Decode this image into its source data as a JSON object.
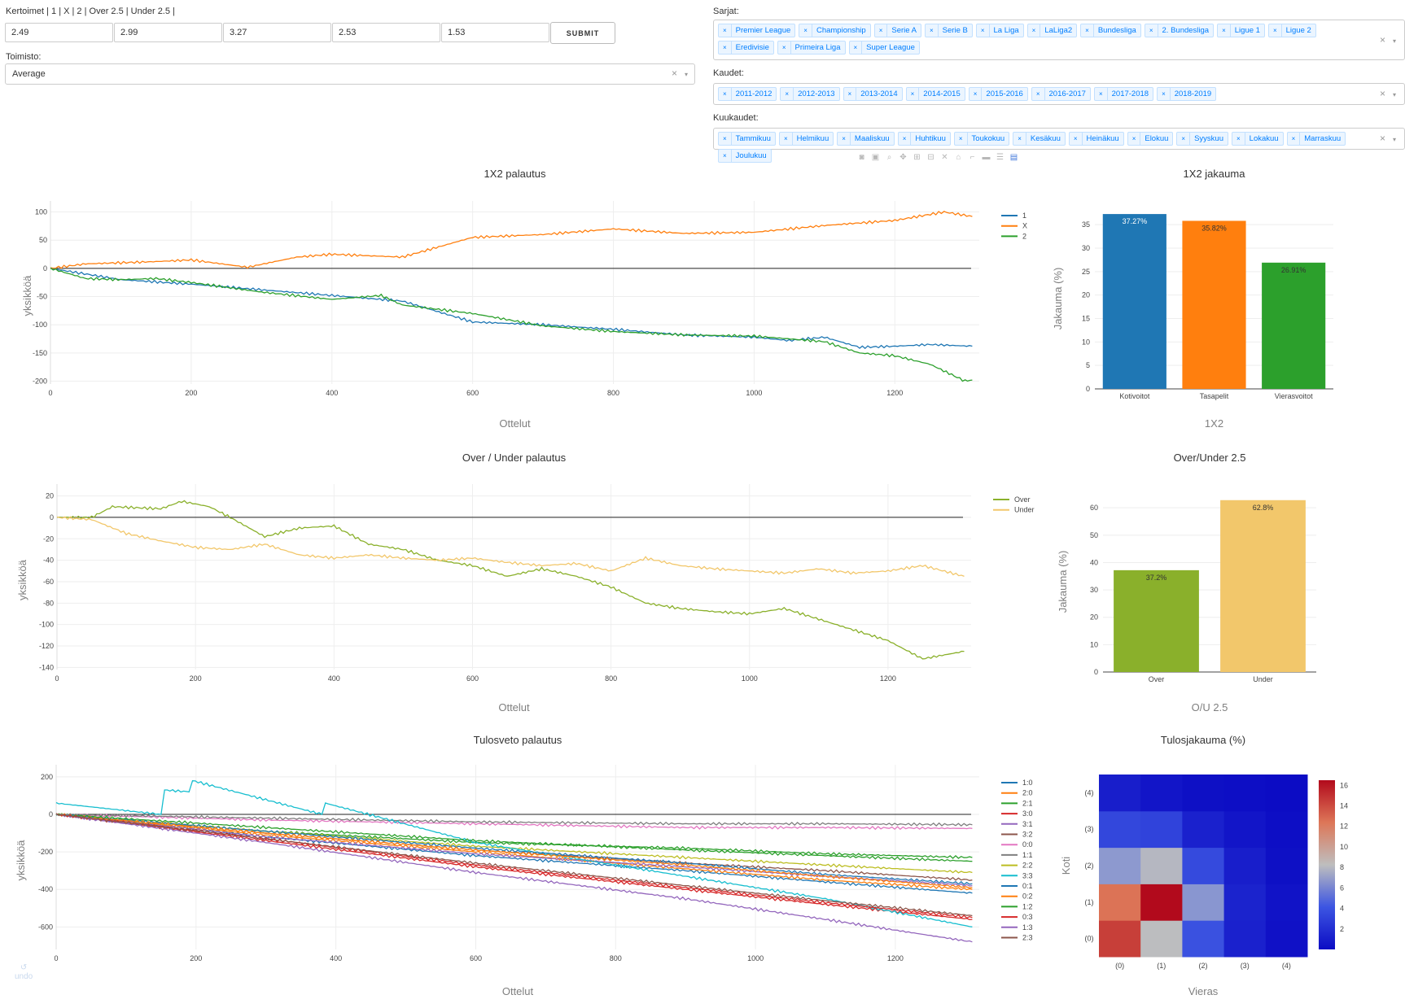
{
  "controls": {
    "odds_label": "Kertoimet | 1 | X | 2 | Over 2.5 | Under 2.5 |",
    "odds_values": [
      "2.49",
      "2.99",
      "3.27",
      "2.53",
      "1.53"
    ],
    "submit_label": "SUBMIT",
    "bookmaker_label": "Toimisto:",
    "bookmaker_value": "Average",
    "leagues_label": "Sarjat:",
    "leagues": [
      "Premier League",
      "Championship",
      "Serie A",
      "Serie B",
      "La Liga",
      "LaLiga2",
      "Bundesliga",
      "2. Bundesliga",
      "Ligue 1",
      "Ligue 2",
      "Eredivisie",
      "Primeira Liga",
      "Super League"
    ],
    "seasons_label": "Kaudet:",
    "seasons": [
      "2011-2012",
      "2012-2013",
      "2013-2014",
      "2014-2015",
      "2015-2016",
      "2016-2017",
      "2017-2018",
      "2018-2019"
    ],
    "months_label": "Kuukaudet:",
    "months": [
      "Tammikuu",
      "Helmikuu",
      "Maaliskuu",
      "Huhtikuu",
      "Toukokuu",
      "Kesäkuu",
      "Heinäkuu",
      "Elokuu",
      "Syyskuu",
      "Lokakuu",
      "Marraskuu",
      "Joulukuu"
    ],
    "clear_symbol": "×",
    "remove_symbol": "×",
    "caret_symbol": "▾"
  },
  "modebar_icons": [
    "camera-icon",
    "save-icon",
    "zoom-icon",
    "pan-icon",
    "zoom-in-icon",
    "zoom-out-icon",
    "autoscale-icon",
    "reset-axes-icon",
    "spike-lines-icon",
    "hover-closest-icon",
    "hover-compare-icon",
    "plotly-logo-icon"
  ],
  "undo_label": "undo",
  "chart_data": [
    {
      "id": "c1x2",
      "type": "line",
      "title": "1X2 palautus",
      "xlabel": "Ottelut",
      "ylabel": "yksikköä",
      "xlim": [
        0,
        1320
      ],
      "ylim": [
        -205,
        108
      ],
      "xticks": [
        0,
        200,
        400,
        600,
        800,
        1000,
        1200
      ],
      "yticks": [
        100,
        50,
        0,
        -50,
        -100,
        -150,
        -200
      ],
      "series": [
        {
          "name": "1",
          "color": "#1f77b4",
          "x": [
            0,
            100,
            200,
            300,
            400,
            500,
            600,
            700,
            800,
            900,
            1000,
            1050,
            1100,
            1150,
            1200,
            1250,
            1310
          ],
          "y": [
            0,
            -20,
            -28,
            -38,
            -48,
            -58,
            -95,
            -100,
            -108,
            -118,
            -122,
            -128,
            -122,
            -140,
            -138,
            -135,
            -138
          ]
        },
        {
          "name": "X",
          "color": "#ff7f0e",
          "x": [
            0,
            50,
            100,
            150,
            200,
            280,
            350,
            400,
            500,
            600,
            700,
            800,
            900,
            1000,
            1100,
            1200,
            1270,
            1310
          ],
          "y": [
            0,
            8,
            10,
            12,
            15,
            2,
            20,
            25,
            20,
            55,
            60,
            70,
            62,
            64,
            76,
            85,
            100,
            92
          ]
        },
        {
          "name": "2",
          "color": "#2ca02c",
          "x": [
            0,
            50,
            100,
            150,
            200,
            300,
            400,
            470,
            500,
            600,
            700,
            800,
            900,
            1000,
            1100,
            1150,
            1200,
            1250,
            1300,
            1310
          ],
          "y": [
            0,
            -18,
            -20,
            -18,
            -25,
            -42,
            -55,
            -48,
            -65,
            -80,
            -102,
            -112,
            -118,
            -120,
            -130,
            -150,
            -155,
            -170,
            -200,
            -198
          ]
        }
      ],
      "baseline": 0
    },
    {
      "id": "c1x2bar",
      "type": "bar",
      "title": "1X2 jakauma",
      "xlabel": "1X2",
      "ylabel": "Jakauma (%)",
      "ylim": [
        0,
        38.5
      ],
      "yticks": [
        0,
        5,
        10,
        15,
        20,
        25,
        30,
        35
      ],
      "categories": [
        "Kotivoitot",
        "Tasapelit",
        "Vierasvoitot"
      ],
      "values": [
        37.27,
        35.82,
        26.91
      ],
      "value_labels": [
        "37.27%",
        "35.82%",
        "26.91%"
      ],
      "colors": [
        "#1f77b4",
        "#ff7f0e",
        "#2ca02c"
      ]
    },
    {
      "id": "cou",
      "type": "line",
      "title": "Over / Under palautus",
      "xlabel": "Ottelut",
      "ylabel": "yksikköä",
      "xlim": [
        0,
        1320
      ],
      "ylim": [
        -142,
        25
      ],
      "xticks": [
        0,
        200,
        400,
        600,
        800,
        1000,
        1200
      ],
      "yticks": [
        20,
        0,
        -20,
        -40,
        -60,
        -80,
        -100,
        -120,
        -140
      ],
      "series": [
        {
          "name": "Over",
          "color": "#8ab02b",
          "x": [
            0,
            50,
            80,
            150,
            180,
            220,
            250,
            300,
            350,
            400,
            450,
            500,
            550,
            600,
            650,
            700,
            750,
            800,
            850,
            900,
            950,
            1000,
            1050,
            1100,
            1150,
            1200,
            1250,
            1310
          ],
          "y": [
            0,
            0,
            10,
            8,
            15,
            10,
            0,
            -18,
            -10,
            -8,
            -25,
            -30,
            -40,
            -45,
            -55,
            -48,
            -55,
            -65,
            -80,
            -85,
            -88,
            -90,
            -85,
            -95,
            -105,
            -115,
            -132,
            -125
          ]
        },
        {
          "name": "Under",
          "color": "#f2c76b",
          "x": [
            0,
            50,
            100,
            150,
            200,
            250,
            300,
            350,
            400,
            450,
            500,
            550,
            600,
            650,
            700,
            750,
            800,
            850,
            900,
            950,
            1000,
            1050,
            1100,
            1150,
            1200,
            1250,
            1310
          ],
          "y": [
            0,
            -2,
            -15,
            -22,
            -28,
            -30,
            -25,
            -35,
            -38,
            -35,
            -38,
            -40,
            -38,
            -42,
            -45,
            -43,
            -50,
            -38,
            -45,
            -48,
            -50,
            -52,
            -48,
            -52,
            -50,
            -45,
            -55
          ]
        }
      ],
      "baseline": 0
    },
    {
      "id": "coubar",
      "type": "bar",
      "title": "Over/Under 2.5",
      "xlabel": "O/U 2.5",
      "ylabel": "Jakauma (%)",
      "ylim": [
        0,
        66
      ],
      "yticks": [
        0,
        10,
        20,
        30,
        40,
        50,
        60
      ],
      "categories": [
        "Over",
        "Under"
      ],
      "values": [
        37.2,
        62.8
      ],
      "value_labels": [
        "37.2%",
        "62.8%"
      ],
      "colors": [
        "#8ab02b",
        "#f2c76b"
      ]
    },
    {
      "id": "cscore",
      "type": "line",
      "title": "Tulosveto palautus",
      "xlabel": "Ottelut",
      "ylabel": "yksikköä",
      "xlim": [
        0,
        1320
      ],
      "ylim": [
        -720,
        230
      ],
      "xticks": [
        0,
        200,
        400,
        600,
        800,
        1000,
        1200
      ],
      "yticks": [
        200,
        0,
        -200,
        -400,
        -600
      ],
      "series": [
        {
          "name": "1:0",
          "color": "#1f77b4",
          "x": [
            0,
            300,
            600,
            900,
            1100,
            1310
          ],
          "y": [
            0,
            -120,
            -220,
            -300,
            -360,
            -420
          ]
        },
        {
          "name": "2:0",
          "color": "#ff7f0e",
          "x": [
            0,
            300,
            600,
            900,
            1100,
            1310
          ],
          "y": [
            0,
            -110,
            -200,
            -290,
            -350,
            -400
          ]
        },
        {
          "name": "2:1",
          "color": "#2ca02c",
          "x": [
            0,
            300,
            600,
            900,
            1100,
            1310
          ],
          "y": [
            0,
            -90,
            -150,
            -180,
            -210,
            -230
          ]
        },
        {
          "name": "3:0",
          "color": "#d62728",
          "x": [
            0,
            300,
            600,
            900,
            1100,
            1310
          ],
          "y": [
            0,
            -140,
            -280,
            -400,
            -480,
            -560
          ]
        },
        {
          "name": "3:1",
          "color": "#9467bd",
          "x": [
            0,
            300,
            600,
            900,
            1100,
            1310
          ],
          "y": [
            0,
            -120,
            -210,
            -280,
            -330,
            -380
          ]
        },
        {
          "name": "3:2",
          "color": "#8c564b",
          "x": [
            0,
            300,
            600,
            900,
            1100,
            1310
          ],
          "y": [
            0,
            -100,
            -190,
            -260,
            -300,
            -350
          ]
        },
        {
          "name": "0:0",
          "color": "#e377c2",
          "x": [
            0,
            300,
            600,
            900,
            1100,
            1310
          ],
          "y": [
            0,
            -30,
            -50,
            -70,
            -70,
            -75
          ]
        },
        {
          "name": "1:1",
          "color": "#7f7f7f",
          "x": [
            0,
            300,
            600,
            900,
            1100,
            1310
          ],
          "y": [
            0,
            -20,
            -40,
            -50,
            -50,
            -55
          ]
        },
        {
          "name": "2:2",
          "color": "#bcbd22",
          "x": [
            0,
            300,
            600,
            900,
            1100,
            1310
          ],
          "y": [
            0,
            -90,
            -170,
            -230,
            -270,
            -310
          ]
        },
        {
          "name": "3:3",
          "color": "#17becf",
          "x": [
            0,
            150,
            155,
            190,
            195,
            380,
            385,
            600,
            900,
            1100,
            1310
          ],
          "y": [
            60,
            0,
            130,
            120,
            180,
            0,
            60,
            -150,
            -330,
            -450,
            -600
          ]
        },
        {
          "name": "0:1",
          "color": "#1f77b4",
          "x": [
            0,
            300,
            600,
            900,
            1100,
            1310
          ],
          "y": [
            0,
            -90,
            -180,
            -260,
            -320,
            -370
          ]
        },
        {
          "name": "0:2",
          "color": "#ff7f0e",
          "x": [
            0,
            300,
            600,
            900,
            1100,
            1310
          ],
          "y": [
            0,
            -100,
            -190,
            -270,
            -330,
            -390
          ]
        },
        {
          "name": "1:2",
          "color": "#2ca02c",
          "x": [
            0,
            300,
            600,
            900,
            1100,
            1310
          ],
          "y": [
            0,
            -70,
            -140,
            -190,
            -220,
            -250
          ]
        },
        {
          "name": "0:3",
          "color": "#d62728",
          "x": [
            0,
            300,
            600,
            900,
            1100,
            1310
          ],
          "y": [
            0,
            -130,
            -270,
            -390,
            -470,
            -550
          ]
        },
        {
          "name": "1:3",
          "color": "#9467bd",
          "x": [
            0,
            300,
            600,
            900,
            1100,
            1310
          ],
          "y": [
            0,
            -150,
            -310,
            -450,
            -560,
            -680
          ]
        },
        {
          "name": "2:3",
          "color": "#8c564b",
          "x": [
            0,
            300,
            600,
            900,
            1100,
            1310
          ],
          "y": [
            0,
            -130,
            -260,
            -380,
            -460,
            -540
          ]
        }
      ],
      "baseline": 0
    },
    {
      "id": "cheat",
      "type": "heatmap",
      "title": "Tulosjakauma (%)",
      "xlabel": "Vieras",
      "ylabel": "Koti",
      "x_categories": [
        "(0)",
        "(1)",
        "(2)",
        "(3)",
        "(4)"
      ],
      "y_categories": [
        "(0)",
        "(1)",
        "(2)",
        "(3)",
        "(4)"
      ],
      "values": [
        [
          14.5,
          8.2,
          3.9,
          1.2,
          0.3
        ],
        [
          12.5,
          16.5,
          6.8,
          1.3,
          0.4
        ],
        [
          6.9,
          8.0,
          3.5,
          1.0,
          0.2
        ],
        [
          3.3,
          3.1,
          1.2,
          0.5,
          0.1
        ],
        [
          1.0,
          0.5,
          0.2,
          0.1,
          0.0
        ]
      ],
      "colorbar_ticks": [
        2,
        4,
        6,
        8,
        10,
        12,
        14,
        16
      ],
      "zlim": [
        0,
        16.5
      ]
    }
  ]
}
